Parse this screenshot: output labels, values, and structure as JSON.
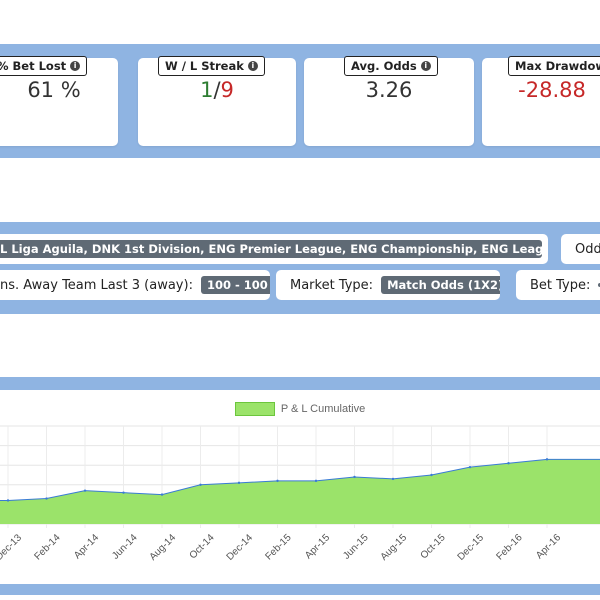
{
  "stats": [
    {
      "value": "61 %",
      "label": "% Bet Lost"
    },
    {
      "value_a": "1",
      "value_sep": "/",
      "value_b": "9",
      "label": "W / L Streak",
      "color_a": "#2e7d32",
      "color_b": "#c62828"
    },
    {
      "value": "3.26",
      "label": "Avg. Odds"
    },
    {
      "value": "-28.88",
      "label": "Max Drawdown",
      "color": "#c62828"
    }
  ],
  "filters": {
    "leagues": "L Liga Aguila, DNK 1st Division, ENG Premier League, ENG Championship, ENG League One ...",
    "odds_label": "Odd",
    "away_label": "ns. Away Team Last 3 (away):",
    "away_value": "100 - 100",
    "market_label": "Market Type:",
    "market_value": "Match Odds (1X2)",
    "bet_label": "Bet Type:"
  },
  "chart_data": {
    "type": "area",
    "title": "",
    "legend": [
      "P & L Cumulative"
    ],
    "fill_color": "#9be36a",
    "line_color": "#3a7bd5",
    "x": [
      "Dec-13",
      "Feb-14",
      "Apr-14",
      "Jun-14",
      "Aug-14",
      "Oct-14",
      "Dec-14",
      "Feb-15",
      "Apr-15",
      "Jun-15",
      "Aug-15",
      "Oct-15",
      "Dec-15",
      "Feb-16",
      "Apr-16"
    ],
    "series": [
      {
        "name": "P & L Cumulative",
        "values": [
          12,
          13,
          17,
          16,
          15,
          20,
          21,
          22,
          22,
          24,
          23,
          25,
          29,
          31,
          33
        ]
      }
    ],
    "ylim": [
      0,
      50
    ]
  }
}
